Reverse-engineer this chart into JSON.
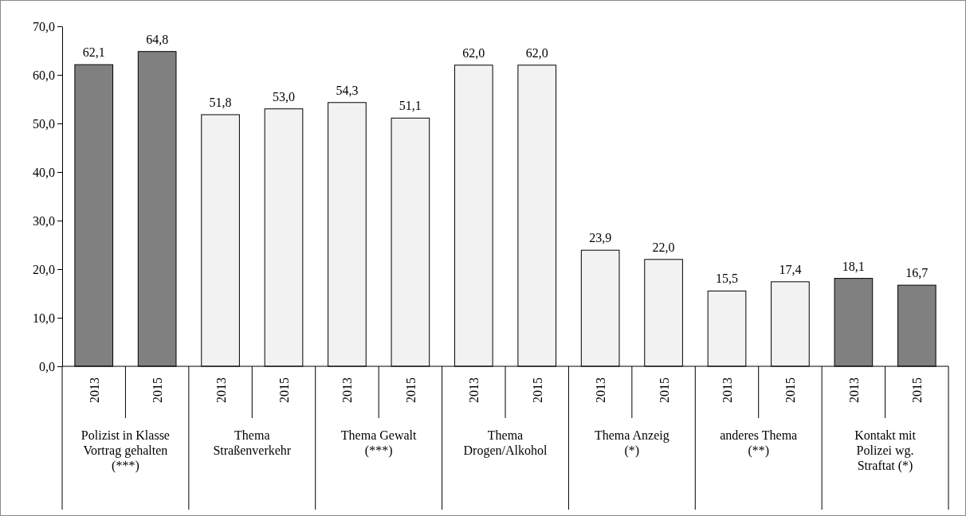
{
  "chart_data": {
    "type": "bar",
    "categories": [
      "2013",
      "2015",
      "2013",
      "2015",
      "2013",
      "2015",
      "2013",
      "2015",
      "2013",
      "2015",
      "2013",
      "2015",
      "2013",
      "2015"
    ],
    "values": [
      62.1,
      64.8,
      51.8,
      53.0,
      54.3,
      51.1,
      62.0,
      62.0,
      23.9,
      22.0,
      15.5,
      17.4,
      18.1,
      16.7
    ],
    "value_labels": [
      "62,1",
      "64,8",
      "51,8",
      "53,0",
      "54,3",
      "51,1",
      "62,0",
      "62,0",
      "23,9",
      "22,0",
      "15,5",
      "17,4",
      "18,1",
      "16,7"
    ],
    "colors": [
      "#808080",
      "#808080",
      "#f2f2f2",
      "#f2f2f2",
      "#f2f2f2",
      "#f2f2f2",
      "#f2f2f2",
      "#f2f2f2",
      "#f2f2f2",
      "#f2f2f2",
      "#f2f2f2",
      "#f2f2f2",
      "#808080",
      "#808080"
    ],
    "ylim": [
      0,
      70
    ],
    "yticks": [
      {
        "value": 0,
        "label": "0,0"
      },
      {
        "value": 10,
        "label": "10,0"
      },
      {
        "value": 20,
        "label": "20,0"
      },
      {
        "value": 30,
        "label": "30,0"
      },
      {
        "value": 40,
        "label": "40,0"
      },
      {
        "value": 50,
        "label": "50,0"
      },
      {
        "value": 60,
        "label": "60,0"
      },
      {
        "value": 70,
        "label": "70,0"
      }
    ],
    "annotations": [
      "Polizist in Klasse\nVortrag gehalten\n(***)",
      "Thema\nStraßenverkehr",
      "Thema Gewalt\n(***)",
      "Thema\nDrogen/Alkohol",
      "Thema Anzeig\n(*)",
      "anderes Thema\n(**)",
      "Kontakt mit\nPolizei wg.\nStraftat (*)"
    ],
    "grid": false
  }
}
